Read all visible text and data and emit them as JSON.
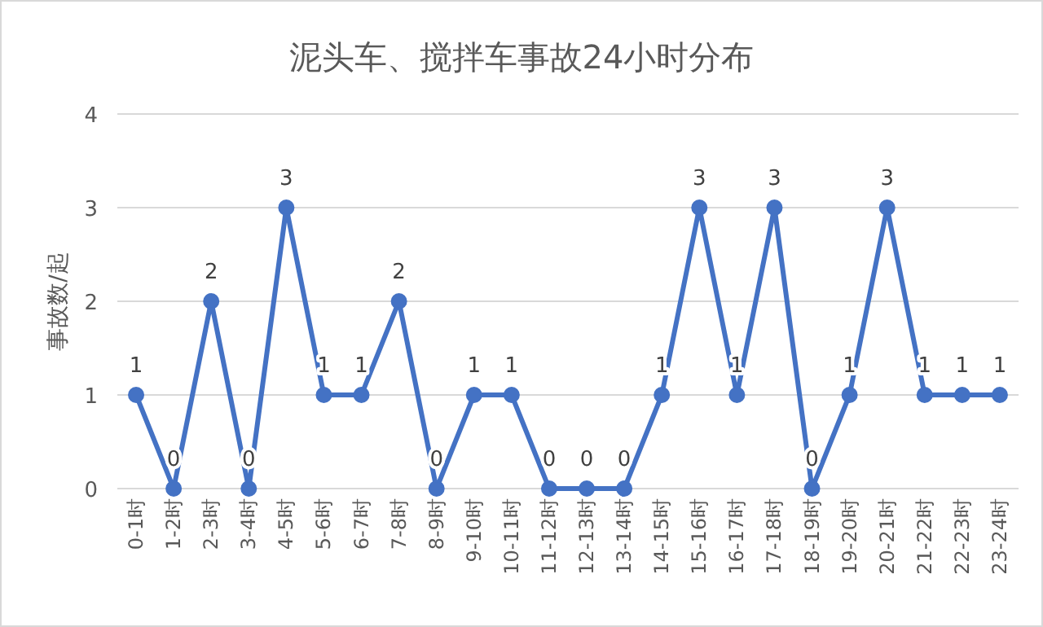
{
  "chart_data": {
    "type": "line",
    "title": "泥头车、搅拌车事故24小时分布",
    "ylabel": "事故数/起",
    "categories": [
      "0-1时",
      "1-2时",
      "2-3时",
      "3-4时",
      "4-5时",
      "5-6时",
      "6-7时",
      "7-8时",
      "8-9时",
      "9-10时",
      "10-11时",
      "11-12时",
      "12-13时",
      "13-14时",
      "14-15时",
      "15-16时",
      "16-17时",
      "17-18时",
      "18-19时",
      "19-20时",
      "20-21时",
      "21-22时",
      "22-23时",
      "23-24时"
    ],
    "series": [
      {
        "color": "#4472c4",
        "values": [
          1,
          0,
          2,
          0,
          3,
          1,
          1,
          2,
          0,
          1,
          1,
          0,
          0,
          0,
          1,
          3,
          1,
          3,
          0,
          1,
          3,
          1,
          1,
          1
        ]
      }
    ],
    "ylim": [
      0,
      4
    ],
    "yticks": [
      0,
      1,
      2,
      3,
      4
    ],
    "grid": "y",
    "data_labels": true,
    "marker": "circle",
    "line_style": "solid"
  }
}
